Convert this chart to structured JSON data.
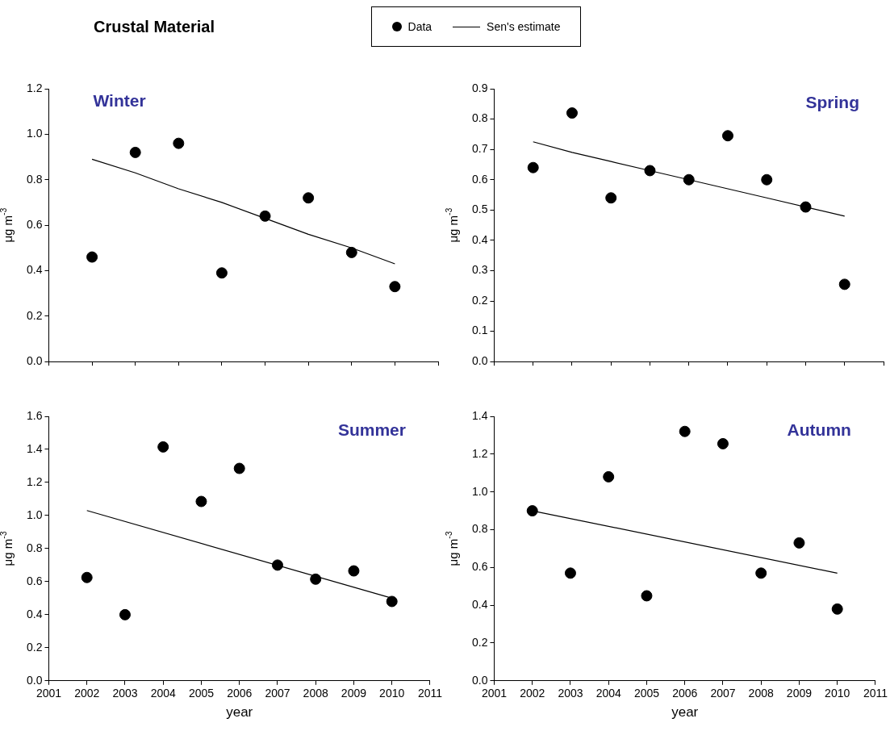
{
  "chart_data": [
    {
      "type": "scatter",
      "title": "Winter",
      "ylabel": "μg m$^{-3}$",
      "annotations": [
        "Crustal Material"
      ],
      "legend": "top",
      "tick_labels": "y",
      "categories": [
        null,
        null,
        null,
        null,
        null,
        null,
        null,
        null
      ],
      "ylim": [
        0,
        1.2
      ],
      "yticks": [
        {
          "value": 0,
          "label": "0.0"
        },
        {
          "value": 0.2,
          "label": "0.2"
        },
        {
          "value": 0.4,
          "label": "0.4"
        },
        {
          "value": 0.6,
          "label": "0.6"
        },
        {
          "value": 0.8,
          "label": "0.8"
        },
        {
          "value": 1,
          "label": "1.0"
        },
        {
          "value": 1.2,
          "label": "1.2"
        }
      ],
      "series": [
        {
          "name": "Data",
          "type": "scatter",
          "marker": "circle",
          "color": "#000000",
          "values": [
            0.46,
            0.92,
            0.96,
            0.39,
            0.64,
            0.72,
            0.48,
            0.33
          ]
        },
        {
          "name": "Sen's estimate",
          "type": "line",
          "marker": "none",
          "color": "#000000",
          "values": [
            0.89,
            0.83,
            0.76,
            0.7,
            0.63,
            0.56,
            0.5,
            0.43
          ]
        }
      ]
    },
    {
      "type": "scatter",
      "title": "Spring",
      "ylabel": "μg m$^{-3}$",
      "tick_labels": "y",
      "categories": [
        null,
        null,
        null,
        null,
        null,
        null,
        null,
        null,
        null
      ],
      "ylim": [
        0,
        0.9
      ],
      "yticks": [
        {
          "value": 0,
          "label": "0.0"
        },
        {
          "value": 0.1,
          "label": "0.1"
        },
        {
          "value": 0.2,
          "label": "0.2"
        },
        {
          "value": 0.3,
          "label": "0.3"
        },
        {
          "value": 0.4,
          "label": "0.4"
        },
        {
          "value": 0.5,
          "label": "0.5"
        },
        {
          "value": 0.6,
          "label": "0.6"
        },
        {
          "value": 0.7,
          "label": "0.7"
        },
        {
          "value": 0.8,
          "label": "0.8"
        },
        {
          "value": 0.9,
          "label": "0.9"
        }
      ],
      "series": [
        {
          "type": "scatter",
          "marker": "circle",
          "color": "#000000",
          "values": [
            0.64,
            0.82,
            0.54,
            0.63,
            0.6,
            0.745,
            0.6,
            0.51,
            0.255
          ]
        },
        {
          "type": "line",
          "marker": "none",
          "color": "#000000",
          "values": [
            0.725,
            0.69,
            0.66,
            0.63,
            0.6,
            0.57,
            0.54,
            0.51,
            0.48
          ]
        }
      ]
    },
    {
      "type": "scatter",
      "title": "Summer",
      "xlabel": "year",
      "ylabel": "μg m$^{-3}$",
      "xlim": [
        2001,
        2011
      ],
      "xticks": [
        2001,
        2002,
        2003,
        2004,
        2005,
        2006,
        2007,
        2008,
        2009,
        2010,
        2011
      ],
      "ylim": [
        0,
        1.6
      ],
      "yticks": [
        {
          "value": 0,
          "label": "0.0"
        },
        {
          "value": 0.2,
          "label": "0.2"
        },
        {
          "value": 0.4,
          "label": "0.4"
        },
        {
          "value": 0.6,
          "label": "0.6"
        },
        {
          "value": 0.8,
          "label": "0.8"
        },
        {
          "value": 1,
          "label": "1.0"
        },
        {
          "value": 1.2,
          "label": "1.2"
        },
        {
          "value": 1.4,
          "label": "1.4"
        },
        {
          "value": 1.6,
          "label": "1.6"
        }
      ],
      "series": [
        {
          "type": "scatter",
          "marker": "circle",
          "color": "#000000",
          "x": [
            2002,
            2003,
            2004,
            2005,
            2006,
            2007,
            2008,
            2009,
            2010
          ],
          "values": [
            0.625,
            0.4,
            1.415,
            1.085,
            1.285,
            0.7,
            0.615,
            0.665,
            0.48
          ]
        },
        {
          "type": "line",
          "marker": "none",
          "color": "#000000",
          "x": [
            2002,
            2010
          ],
          "values": [
            1.03,
            0.5
          ]
        }
      ]
    },
    {
      "type": "scatter",
      "title": "Autumn",
      "xlabel": "year",
      "ylabel": "μg m$^{-3}$",
      "xlim": [
        2001,
        2011
      ],
      "xticks": [
        2001,
        2002,
        2003,
        2004,
        2005,
        2006,
        2007,
        2008,
        2009,
        2010,
        2011
      ],
      "ylim": [
        0,
        1.4
      ],
      "yticks": [
        {
          "value": 0,
          "label": "0.0"
        },
        {
          "value": 0.2,
          "label": "0.2"
        },
        {
          "value": 0.4,
          "label": "0.4"
        },
        {
          "value": 0.6,
          "label": "0.6"
        },
        {
          "value": 0.8,
          "label": "0.8"
        },
        {
          "value": 1,
          "label": "1.0"
        },
        {
          "value": 1.2,
          "label": "1.2"
        },
        {
          "value": 1.4,
          "label": "1.4"
        }
      ],
      "series": [
        {
          "type": "scatter",
          "marker": "circle",
          "color": "#000000",
          "x": [
            2002,
            2003,
            2004,
            2005,
            2006,
            2007,
            2008,
            2009,
            2010
          ],
          "values": [
            0.9,
            0.57,
            1.08,
            0.45,
            1.32,
            1.255,
            0.57,
            0.73,
            0.38
          ]
        },
        {
          "type": "line",
          "marker": "none",
          "color": "#000000",
          "x": [
            2002,
            2010
          ],
          "values": [
            0.9,
            0.57
          ]
        }
      ]
    }
  ]
}
